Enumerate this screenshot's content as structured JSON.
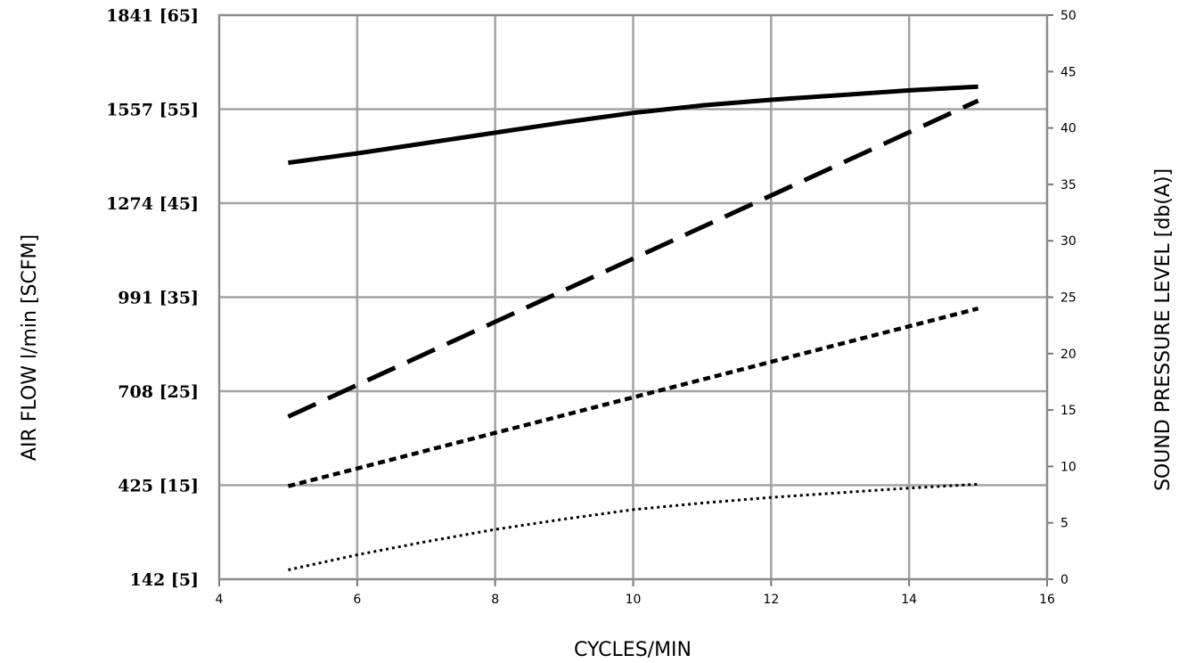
{
  "chart_data": {
    "type": "line",
    "title": "",
    "xlabel": "CYCLES/MIN",
    "ylabel": "AIR FLOW l/min [SCFM]",
    "y2label": "SOUND PRESSURE LEVEL [db(A)]",
    "xlim": [
      4,
      16
    ],
    "x_ticks": [
      "4",
      "6",
      "8",
      "10",
      "12",
      "14",
      "16"
    ],
    "ylim": [
      5,
      65
    ],
    "y_ticks": [
      {
        "value": 5,
        "label": "142 [5]"
      },
      {
        "value": 15,
        "label": "425 [15]"
      },
      {
        "value": 25,
        "label": "708 [25]"
      },
      {
        "value": 35,
        "label": "991 [35]"
      },
      {
        "value": 45,
        "label": "1274 [45]"
      },
      {
        "value": 55,
        "label": "1557 [55]"
      },
      {
        "value": 65,
        "label": "1841 [65]"
      }
    ],
    "y2lim": [
      0,
      50
    ],
    "y2_ticks": [
      "0",
      "5",
      "10",
      "15",
      "20",
      "25",
      "30",
      "35",
      "40",
      "45",
      "50"
    ],
    "grid": true,
    "series": [
      {
        "style": "solid",
        "axis": "left",
        "x": [
          5,
          6,
          7,
          8,
          9,
          10,
          11,
          12,
          13,
          14,
          15
        ],
        "values": [
          49.3,
          50.3,
          51.4,
          52.5,
          53.6,
          54.6,
          55.4,
          56.0,
          56.5,
          57.0,
          57.4
        ]
      },
      {
        "style": "long-dash",
        "axis": "left",
        "x": [
          5,
          15
        ],
        "values": [
          22.3,
          55.9
        ]
      },
      {
        "style": "short-dash",
        "axis": "left",
        "x": [
          5,
          15
        ],
        "values": [
          14.9,
          33.8
        ]
      },
      {
        "style": "dotted",
        "axis": "left",
        "x": [
          5,
          6,
          7,
          8,
          9,
          10,
          11,
          12,
          13,
          14,
          15
        ],
        "values": [
          6.0,
          7.6,
          9.0,
          10.3,
          11.4,
          12.4,
          13.1,
          13.7,
          14.2,
          14.7,
          15.1
        ]
      }
    ]
  }
}
